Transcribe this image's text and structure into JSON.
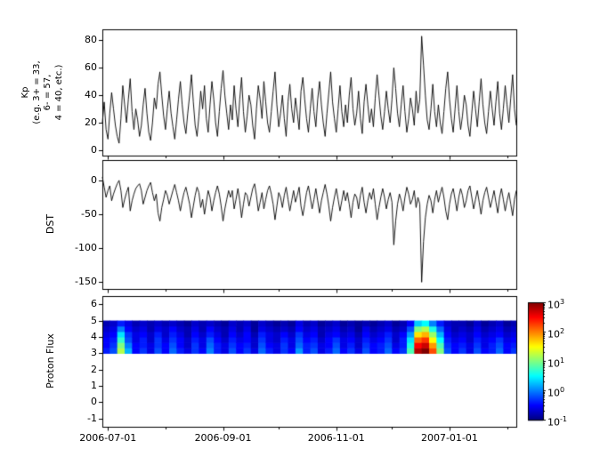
{
  "figure": {
    "background": "#ffffff",
    "frame_color": "#000000"
  },
  "x_axis": {
    "start_date": "2006-06-28",
    "total_days": 224,
    "major_ticks": [
      {
        "day": 3,
        "label": "2006-07-01"
      },
      {
        "day": 65,
        "label": "2006-09-01"
      },
      {
        "day": 126,
        "label": "2006-11-01"
      },
      {
        "day": 187,
        "label": "2007-01-01"
      }
    ],
    "minor_tick_days": [
      34,
      95,
      156,
      218
    ]
  },
  "chart_data": [
    {
      "type": "line",
      "name": "kp",
      "ylabel": "Kp\n(e.g. 3+ = 33,\n6- = 57,\n4 = 40, etc.)",
      "line_color": "#000000",
      "ylim": [
        -4,
        88
      ],
      "yticks": [
        0,
        20,
        40,
        60,
        80
      ],
      "x_start": "2006-06-28",
      "x_step_days": 1,
      "values": [
        20,
        35,
        15,
        8,
        27,
        42,
        30,
        18,
        10,
        5,
        23,
        47,
        33,
        20,
        37,
        52,
        28,
        15,
        30,
        22,
        10,
        18,
        33,
        45,
        27,
        13,
        7,
        20,
        38,
        30,
        48,
        57,
        40,
        25,
        15,
        30,
        43,
        27,
        17,
        8,
        22,
        37,
        50,
        33,
        20,
        12,
        27,
        40,
        55,
        35,
        18,
        10,
        25,
        43,
        30,
        47,
        23,
        13,
        33,
        50,
        37,
        20,
        10,
        28,
        45,
        58,
        40,
        27,
        15,
        33,
        22,
        47,
        30,
        17,
        37,
        53,
        28,
        13,
        25,
        40,
        33,
        18,
        8,
        30,
        47,
        37,
        23,
        50,
        35,
        20,
        13,
        28,
        43,
        57,
        33,
        17,
        27,
        40,
        23,
        10,
        35,
        48,
        30,
        20,
        38,
        27,
        15,
        43,
        53,
        37,
        23,
        13,
        30,
        45,
        28,
        17,
        37,
        50,
        33,
        20,
        10,
        27,
        42,
        57,
        35,
        23,
        13,
        30,
        47,
        28,
        17,
        33,
        20,
        40,
        53,
        30,
        18,
        27,
        43,
        23,
        12,
        35,
        48,
        33,
        20,
        30,
        17,
        38,
        55,
        40,
        25,
        15,
        28,
        43,
        30,
        20,
        37,
        60,
        45,
        27,
        17,
        33,
        47,
        28,
        13,
        23,
        38,
        30,
        18,
        43,
        27,
        37,
        83,
        62,
        40,
        22,
        15,
        30,
        48,
        28,
        17,
        33,
        20,
        12,
        28,
        45,
        57,
        37,
        23,
        13,
        30,
        47,
        28,
        15,
        25,
        40,
        33,
        18,
        10,
        27,
        43,
        30,
        17,
        35,
        52,
        33,
        20,
        12,
        28,
        43,
        30,
        18,
        35,
        50,
        27,
        15,
        30,
        47,
        33,
        20,
        38,
        55,
        30,
        18
      ]
    },
    {
      "type": "line",
      "name": "dst",
      "ylabel": "DST",
      "line_color": "#000000",
      "ylim": [
        -160,
        30
      ],
      "yticks": [
        0,
        -50,
        -100,
        -150
      ],
      "x_start": "2006-06-28",
      "x_step_days": 1,
      "values": [
        5,
        -10,
        -25,
        -15,
        -8,
        -30,
        -20,
        -12,
        -5,
        0,
        -15,
        -40,
        -28,
        -18,
        -10,
        -45,
        -30,
        -20,
        -12,
        -8,
        -5,
        -15,
        -35,
        -25,
        -15,
        -8,
        -3,
        -18,
        -30,
        -20,
        -48,
        -60,
        -40,
        -28,
        -15,
        -22,
        -35,
        -25,
        -15,
        -6,
        -18,
        -30,
        -45,
        -30,
        -18,
        -10,
        -22,
        -35,
        -55,
        -38,
        -22,
        -10,
        -18,
        -40,
        -28,
        -50,
        -32,
        -15,
        -25,
        -45,
        -30,
        -18,
        -8,
        -20,
        -38,
        -60,
        -42,
        -28,
        -15,
        -25,
        -15,
        -42,
        -28,
        -12,
        -30,
        -55,
        -35,
        -18,
        -22,
        -38,
        -25,
        -12,
        -5,
        -22,
        -45,
        -32,
        -18,
        -42,
        -28,
        -15,
        -8,
        -20,
        -35,
        -58,
        -38,
        -18,
        -25,
        -40,
        -22,
        -10,
        -28,
        -45,
        -30,
        -15,
        -32,
        -22,
        -10,
        -38,
        -52,
        -35,
        -18,
        -8,
        -25,
        -42,
        -28,
        -12,
        -30,
        -48,
        -30,
        -18,
        -6,
        -20,
        -38,
        -60,
        -40,
        -25,
        -12,
        -28,
        -45,
        -30,
        -15,
        -30,
        -18,
        -35,
        -55,
        -32,
        -20,
        -25,
        -42,
        -22,
        -10,
        -32,
        -48,
        -30,
        -18,
        -28,
        -12,
        -35,
        -58,
        -40,
        -25,
        -12,
        -25,
        -42,
        -28,
        -18,
        -32,
        -95,
        -60,
        -35,
        -20,
        -30,
        -45,
        -25,
        -10,
        -20,
        -35,
        -28,
        -15,
        -40,
        -25,
        -35,
        -150,
        -90,
        -55,
        -35,
        -22,
        -30,
        -48,
        -28,
        -15,
        -32,
        -20,
        -10,
        -25,
        -45,
        -58,
        -35,
        -20,
        -12,
        -28,
        -45,
        -25,
        -12,
        -22,
        -40,
        -30,
        -15,
        -8,
        -25,
        -42,
        -28,
        -15,
        -32,
        -50,
        -30,
        -18,
        -10,
        -25,
        -40,
        -28,
        -15,
        -32,
        -48,
        -25,
        -12,
        -28,
        -45,
        -30,
        -18,
        -35,
        -52,
        -28,
        -15
      ]
    },
    {
      "type": "heatmap",
      "name": "proton-flux",
      "ylabel": "Proton Flux",
      "ylim": [
        -1.5,
        6.5
      ],
      "yticks": [
        -1,
        0,
        1,
        2,
        3,
        4,
        5,
        6
      ],
      "band_y": [
        3,
        5
      ],
      "colormap": "jet",
      "scale": "log10",
      "value_range_log10": [
        -1,
        3
      ],
      "days_per_column": 4,
      "values_log10": [
        [
          -0.4,
          -0.5,
          -0.5,
          -0.6,
          -0.7,
          -0.8
        ],
        [
          -0.2,
          -0.3,
          -0.4,
          -0.5,
          -0.6,
          -0.7
        ],
        [
          1.2,
          1.0,
          0.7,
          0.4,
          0.0,
          -0.4
        ],
        [
          0.2,
          0.0,
          -0.2,
          -0.3,
          -0.5,
          -0.6
        ],
        [
          -0.5,
          -0.5,
          -0.6,
          -0.6,
          -0.7,
          -0.8
        ],
        [
          -0.3,
          -0.4,
          -0.4,
          -0.5,
          -0.6,
          -0.7
        ],
        [
          -0.6,
          -0.6,
          -0.7,
          -0.7,
          -0.8,
          -0.8
        ],
        [
          -0.2,
          -0.3,
          -0.3,
          -0.4,
          -0.6,
          -0.7
        ],
        [
          -0.5,
          -0.5,
          -0.6,
          -0.7,
          -0.7,
          -0.8
        ],
        [
          -0.1,
          -0.2,
          -0.3,
          -0.4,
          -0.5,
          -0.7
        ],
        [
          -0.4,
          -0.5,
          -0.5,
          -0.6,
          -0.7,
          -0.8
        ],
        [
          -0.6,
          -0.7,
          -0.7,
          -0.8,
          -0.8,
          -0.9
        ],
        [
          -0.3,
          -0.3,
          -0.4,
          -0.5,
          -0.6,
          -0.7
        ],
        [
          -0.5,
          -0.6,
          -0.6,
          -0.7,
          -0.8,
          -0.8
        ],
        [
          0.0,
          -0.1,
          -0.2,
          -0.4,
          -0.5,
          -0.7
        ],
        [
          -0.4,
          -0.4,
          -0.5,
          -0.6,
          -0.7,
          -0.8
        ],
        [
          -0.6,
          -0.6,
          -0.7,
          -0.8,
          -0.8,
          -0.9
        ],
        [
          -0.2,
          -0.3,
          -0.4,
          -0.5,
          -0.6,
          -0.7
        ],
        [
          -0.5,
          -0.5,
          -0.6,
          -0.7,
          -0.8,
          -0.8
        ],
        [
          -0.3,
          -0.4,
          -0.5,
          -0.5,
          -0.6,
          -0.7
        ],
        [
          -0.6,
          -0.7,
          -0.7,
          -0.8,
          -0.9,
          -0.9
        ],
        [
          -0.1,
          -0.2,
          -0.3,
          -0.4,
          -0.6,
          -0.7
        ],
        [
          -0.4,
          -0.5,
          -0.6,
          -0.6,
          -0.7,
          -0.8
        ],
        [
          -0.6,
          -0.6,
          -0.7,
          -0.7,
          -0.8,
          -0.9
        ],
        [
          -0.3,
          -0.3,
          -0.4,
          -0.5,
          -0.7,
          -0.8
        ],
        [
          -0.5,
          -0.6,
          -0.6,
          -0.7,
          -0.8,
          -0.9
        ],
        [
          0.1,
          -0.1,
          -0.2,
          -0.3,
          -0.5,
          -0.6
        ],
        [
          -0.4,
          -0.4,
          -0.5,
          -0.6,
          -0.7,
          -0.8
        ],
        [
          -0.2,
          -0.3,
          -0.4,
          -0.5,
          -0.6,
          -0.7
        ],
        [
          -0.6,
          -0.6,
          -0.7,
          -0.8,
          -0.8,
          -0.9
        ],
        [
          -0.4,
          -0.5,
          -0.5,
          -0.6,
          -0.7,
          -0.8
        ],
        [
          -0.1,
          -0.2,
          -0.3,
          -0.5,
          -0.6,
          -0.7
        ],
        [
          -0.5,
          -0.6,
          -0.6,
          -0.7,
          -0.8,
          -0.9
        ],
        [
          -0.3,
          -0.4,
          -0.5,
          -0.6,
          -0.7,
          -0.8
        ],
        [
          -0.6,
          -0.7,
          -0.7,
          -0.8,
          -0.9,
          -0.9
        ],
        [
          -0.2,
          -0.3,
          -0.4,
          -0.5,
          -0.6,
          -0.8
        ],
        [
          -0.5,
          -0.5,
          -0.6,
          -0.7,
          -0.8,
          -0.9
        ],
        [
          -0.4,
          -0.4,
          -0.5,
          -0.6,
          -0.7,
          -0.8
        ],
        [
          -0.1,
          -0.2,
          -0.3,
          -0.4,
          -0.6,
          -0.7
        ],
        [
          -0.5,
          -0.6,
          -0.7,
          -0.7,
          -0.8,
          -0.9
        ],
        [
          -0.3,
          -0.4,
          -0.4,
          -0.5,
          -0.7,
          -0.8
        ],
        [
          0.8,
          0.6,
          0.4,
          0.1,
          -0.2,
          -0.5
        ],
        [
          2.8,
          2.5,
          2.1,
          1.6,
          1.0,
          0.3
        ],
        [
          3.0,
          2.7,
          2.3,
          1.8,
          1.2,
          0.5
        ],
        [
          2.2,
          1.9,
          1.5,
          1.1,
          0.6,
          0.0
        ],
        [
          1.0,
          0.8,
          0.5,
          0.2,
          -0.1,
          -0.4
        ],
        [
          -0.2,
          -0.3,
          -0.4,
          -0.5,
          -0.6,
          -0.7
        ],
        [
          -0.5,
          -0.5,
          -0.6,
          -0.7,
          -0.8,
          -0.8
        ],
        [
          -0.3,
          -0.4,
          -0.5,
          -0.6,
          -0.7,
          -0.8
        ],
        [
          -0.6,
          -0.6,
          -0.7,
          -0.7,
          -0.8,
          -0.9
        ],
        [
          -0.2,
          -0.3,
          -0.4,
          -0.5,
          -0.6,
          -0.7
        ],
        [
          -0.5,
          -0.6,
          -0.6,
          -0.7,
          -0.8,
          -0.9
        ],
        [
          -0.4,
          -0.4,
          -0.5,
          -0.6,
          -0.7,
          -0.8
        ],
        [
          -0.1,
          -0.2,
          -0.3,
          -0.5,
          -0.6,
          -0.7
        ],
        [
          -0.5,
          -0.5,
          -0.6,
          -0.7,
          -0.8,
          -0.9
        ],
        [
          -0.3,
          -0.4,
          -0.5,
          -0.6,
          -0.7,
          -0.8
        ]
      ],
      "colorbar": {
        "tick_labels": [
          "10^3",
          "10^2",
          "10^1",
          "10^0",
          "10^-1"
        ]
      }
    }
  ]
}
